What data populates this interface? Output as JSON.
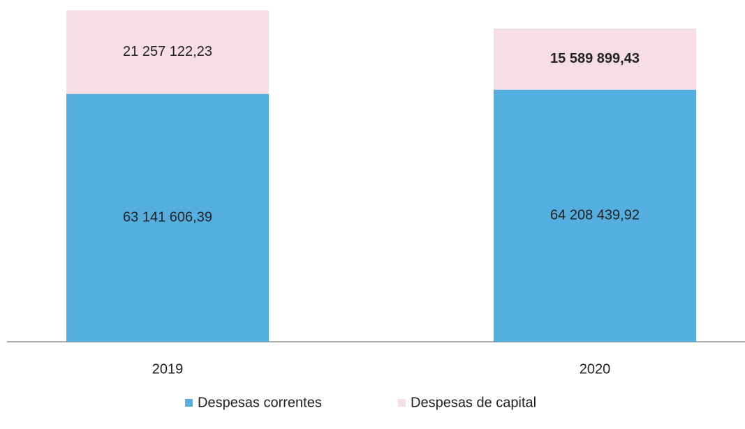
{
  "chart_data": {
    "type": "stacked_bar",
    "categories": [
      "2019",
      "2020"
    ],
    "series": [
      {
        "name": "Despesas correntes",
        "color": "#55aee0",
        "values": [
          63141606.39,
          64208439.92
        ],
        "value_labels": [
          "63 141 606,39",
          "64 208 439,92"
        ]
      },
      {
        "name": "Despesas de capital",
        "color": "#f7dde6",
        "values": [
          21257122.23,
          15589899.43
        ],
        "value_labels": [
          "21 257 122,23",
          "15 589 899,43"
        ]
      }
    ]
  }
}
